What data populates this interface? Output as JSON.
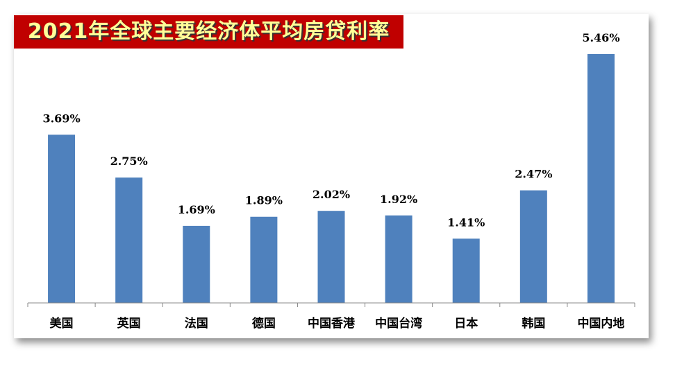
{
  "chart_data": {
    "type": "bar",
    "title": "2021年全球主要经济体平均房贷利率",
    "categories": [
      "美国",
      "英国",
      "法国",
      "德国",
      "中国香港",
      "中国台湾",
      "日本",
      "韩国",
      "中国内地"
    ],
    "values": [
      3.69,
      2.75,
      1.69,
      1.89,
      2.02,
      1.92,
      1.41,
      2.47,
      5.46
    ],
    "data_labels": [
      "3.69%",
      "2.75%",
      "1.69%",
      "1.89%",
      "2.02%",
      "1.92%",
      "1.41%",
      "2.47%",
      "5.46%"
    ],
    "xlabel": "",
    "ylabel": "",
    "ylim": [
      0,
      5.46
    ],
    "grid": false,
    "legend": "none",
    "bar_color": "#4f81bd",
    "title_bg": "#c00000",
    "title_color": "#ffff99"
  }
}
